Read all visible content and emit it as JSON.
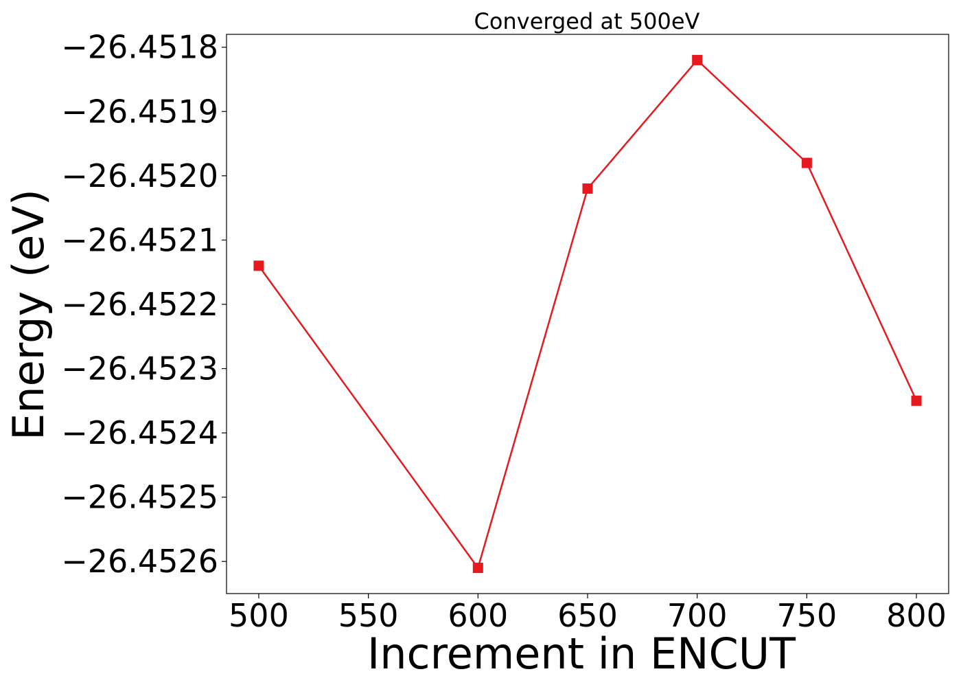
{
  "chart_data": {
    "type": "line",
    "title": "Converged at 500eV",
    "xlabel": "Increment in ENCUT",
    "ylabel": "Energy (eV)",
    "x": [
      500,
      600,
      650,
      700,
      750,
      800
    ],
    "series": [
      {
        "values": [
          -26.45214,
          -26.45261,
          -26.45202,
          -26.45182,
          -26.45198,
          -26.45235
        ],
        "color": "#e8191e",
        "marker": "square"
      }
    ],
    "xticks": [
      500,
      550,
      600,
      650,
      700,
      750,
      800
    ],
    "xtick_labels": [
      "500",
      "550",
      "600",
      "650",
      "700",
      "750",
      "800"
    ],
    "yticks": [
      -26.4526,
      -26.4525,
      -26.4524,
      -26.4523,
      -26.4522,
      -26.4521,
      -26.452,
      -26.4519,
      -26.4518
    ],
    "ytick_labels": [
      "−26.4526",
      "−26.4525",
      "−26.4524",
      "−26.4523",
      "−26.4522",
      "−26.4521",
      "−26.4520",
      "−26.4519",
      "−26.4518"
    ],
    "xlim": [
      485.3,
      814.7
    ],
    "ylim": [
      -26.45265,
      -26.45178
    ],
    "grid": false,
    "legend": "none"
  }
}
